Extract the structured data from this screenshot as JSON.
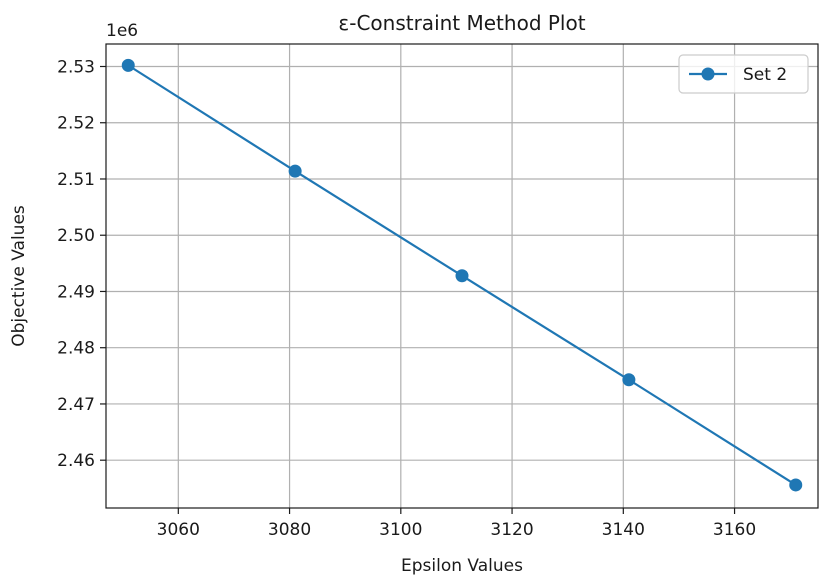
{
  "chart_data": {
    "type": "line",
    "title": "ε-Constraint Method Plot",
    "xlabel": "Epsilon Values",
    "ylabel": "Objective Values",
    "y_offset_label": "1e6",
    "xlim": [
      3047,
      3175
    ],
    "ylim": [
      2.4515,
      2.534
    ],
    "x_ticks": [
      3060,
      3080,
      3100,
      3120,
      3140,
      3160
    ],
    "y_ticks": [
      2.46,
      2.47,
      2.48,
      2.49,
      2.5,
      2.51,
      2.52,
      2.53
    ],
    "x_tick_labels": [
      "3060",
      "3080",
      "3100",
      "3120",
      "3140",
      "3160"
    ],
    "y_tick_labels": [
      "2.46",
      "2.47",
      "2.48",
      "2.49",
      "2.50",
      "2.51",
      "2.52",
      "2.53"
    ],
    "grid": true,
    "legend_position": "top-right",
    "series": [
      {
        "name": "Set 2",
        "color": "#1f77b4",
        "marker": "circle",
        "x": [
          3051,
          3081,
          3111,
          3141,
          3171
        ],
        "y": [
          2.5302,
          2.5114,
          2.4928,
          2.4743,
          2.4556
        ]
      }
    ]
  }
}
